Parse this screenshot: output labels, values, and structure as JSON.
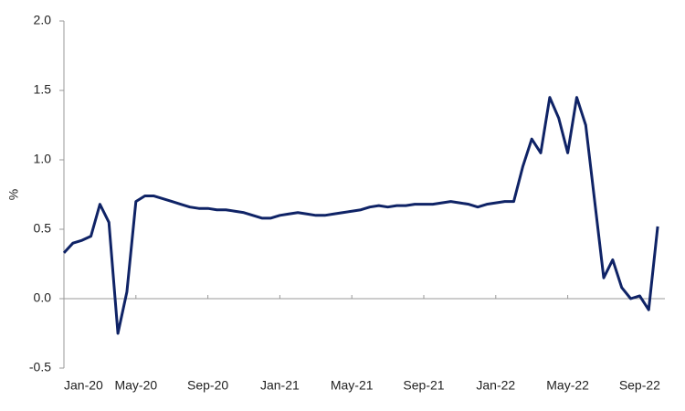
{
  "chart_data": {
    "type": "line",
    "ylabel": "%",
    "categories": [
      "Jan-20",
      null,
      null,
      null,
      null,
      null,
      null,
      null,
      "May-20",
      null,
      null,
      null,
      null,
      null,
      null,
      null,
      "Sep-20",
      null,
      null,
      null,
      null,
      null,
      null,
      null,
      "Jan-21",
      null,
      null,
      null,
      null,
      null,
      null,
      null,
      "May-21",
      null,
      null,
      null,
      null,
      null,
      null,
      null,
      "Sep-21",
      null,
      null,
      null,
      null,
      null,
      null,
      null,
      "Jan-22",
      null,
      null,
      null,
      null,
      null,
      null,
      null,
      "May-22",
      null,
      null,
      null,
      null,
      null,
      null,
      null,
      "Sep-22",
      null,
      null
    ],
    "series": [
      {
        "color": "#0f2366",
        "values": [
          0.33,
          0.4,
          0.42,
          0.45,
          0.68,
          0.55,
          -0.25,
          0.05,
          0.7,
          0.74,
          0.74,
          0.72,
          0.7,
          0.68,
          0.66,
          0.65,
          0.65,
          0.64,
          0.64,
          0.63,
          0.62,
          0.6,
          0.58,
          0.58,
          0.6,
          0.61,
          0.62,
          0.61,
          0.6,
          0.6,
          0.61,
          0.62,
          0.63,
          0.64,
          0.66,
          0.67,
          0.66,
          0.67,
          0.67,
          0.68,
          0.68,
          0.68,
          0.69,
          0.7,
          0.69,
          0.68,
          0.66,
          0.68,
          0.69,
          0.7,
          0.7,
          0.95,
          1.15,
          1.05,
          1.45,
          1.3,
          1.05,
          1.45,
          1.25,
          0.7,
          0.15,
          0.28,
          0.08,
          0.0,
          0.02,
          -0.08,
          0.52
        ]
      }
    ],
    "ylim": [
      -0.5,
      2.0
    ],
    "yticks": [
      -0.5,
      {
        "value": 0,
        "label": "0.0"
      },
      0.5,
      {
        "value": 1,
        "label": "1.0"
      },
      1.5,
      {
        "value": 2,
        "label": "2.0"
      }
    ]
  }
}
